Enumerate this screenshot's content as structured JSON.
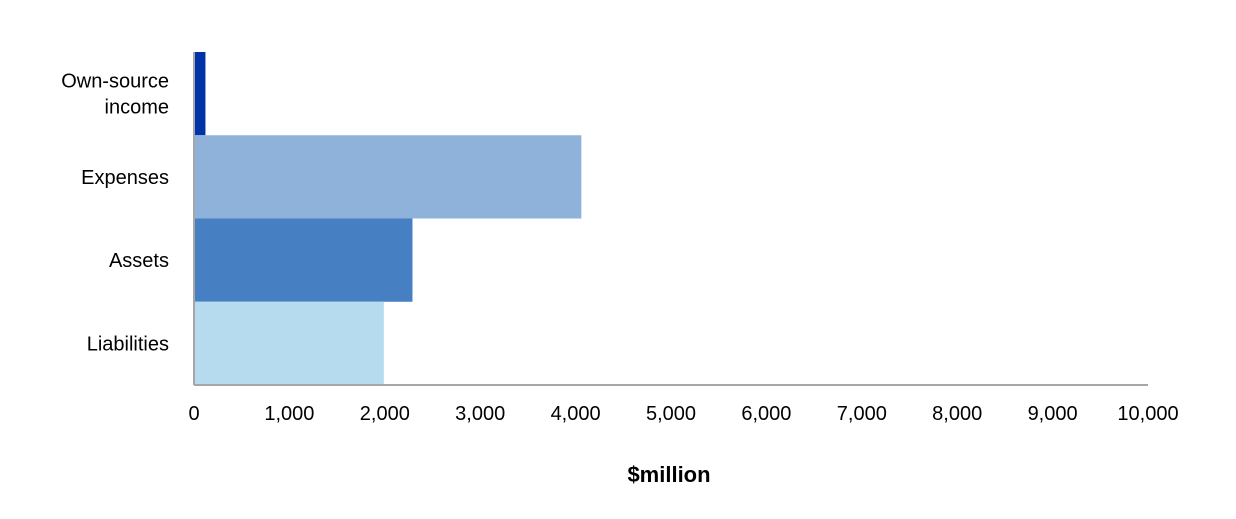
{
  "chart_data": {
    "type": "bar",
    "orientation": "horizontal",
    "categories": [
      [
        "Own-source",
        "income"
      ],
      [
        "Expenses"
      ],
      [
        "Assets"
      ],
      [
        "Liabilities"
      ]
    ],
    "values": [
      120,
      4060,
      2290,
      1990
    ],
    "colors": [
      "#0033a8",
      "#8fb2db",
      "#467fc2",
      "#b6dbee"
    ],
    "xlabel": "$million",
    "ylabel": "",
    "title": "",
    "xlim": [
      0,
      10000
    ],
    "xticks": [
      0,
      1000,
      2000,
      3000,
      4000,
      5000,
      6000,
      7000,
      8000,
      9000,
      10000
    ],
    "xtick_labels": [
      "0",
      "1,000",
      "2,000",
      "3,000",
      "4,000",
      "5,000",
      "6,000",
      "7,000",
      "8,000",
      "9,000",
      "10,000"
    ],
    "grid": false,
    "legend": "none",
    "axis_color": "#a6a6a6"
  }
}
